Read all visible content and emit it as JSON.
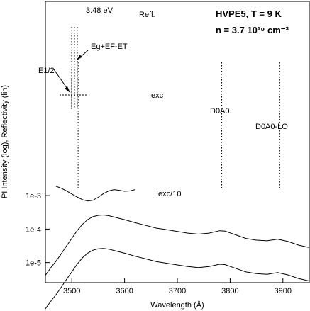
{
  "chart_data": {
    "type": "line",
    "xlabel": "Wavelength (Å)",
    "ylabel": "PI Intensity (log), Reflectivity (lin)",
    "x_ticks": [
      3500,
      3600,
      3700,
      3800,
      3900
    ],
    "y_ticks": [
      "1e-5",
      "1e-4",
      "1e-3"
    ],
    "xlim": [
      3450,
      3950
    ],
    "ylim_log10": [
      -5.6,
      2.8
    ],
    "panel_text": [
      "HVPE5, T = 9 K",
      "n = 3.7 10¹⁹ cm⁻³"
    ],
    "labels": {
      "refl": "Refl.",
      "refl_energy": "3.48 eV",
      "eg": "Eg+EF-ET",
      "e12": "E1/2",
      "iexc": "Iexc",
      "iexc_div": "Iexc/10",
      "d0a0": "D0A0",
      "d0a0_lo": "D0A0-LO"
    },
    "series": [
      {
        "name": "Refl.",
        "points": [
          [
            3470,
            -2.72
          ],
          [
            3480,
            -2.78
          ],
          [
            3490,
            -2.86
          ],
          [
            3500,
            -2.95
          ],
          [
            3510,
            -3.04
          ],
          [
            3520,
            -3.12
          ],
          [
            3530,
            -3.16
          ],
          [
            3540,
            -3.14
          ],
          [
            3550,
            -3.05
          ],
          [
            3560,
            -2.94
          ],
          [
            3570,
            -2.86
          ],
          [
            3580,
            -2.82
          ],
          [
            3590,
            -2.84
          ],
          [
            3600,
            -2.87
          ],
          [
            3610,
            -2.86
          ],
          [
            3620,
            -2.82
          ]
        ]
      },
      {
        "name": "Iexc",
        "points": [
          [
            3450,
            -5.38
          ],
          [
            3460,
            -5.16
          ],
          [
            3470,
            -4.96
          ],
          [
            3480,
            -4.74
          ],
          [
            3490,
            -4.5
          ],
          [
            3500,
            -4.28
          ],
          [
            3510,
            -4.05
          ],
          [
            3520,
            -3.86
          ],
          [
            3530,
            -3.72
          ],
          [
            3540,
            -3.63
          ],
          [
            3550,
            -3.59
          ],
          [
            3560,
            -3.58
          ],
          [
            3570,
            -3.6
          ],
          [
            3580,
            -3.64
          ],
          [
            3600,
            -3.72
          ],
          [
            3620,
            -3.81
          ],
          [
            3640,
            -3.89
          ],
          [
            3660,
            -3.97
          ],
          [
            3680,
            -4.02
          ],
          [
            3700,
            -4.07
          ],
          [
            3720,
            -4.12
          ],
          [
            3740,
            -4.15
          ],
          [
            3760,
            -4.12
          ],
          [
            3780,
            -4.05
          ],
          [
            3790,
            -4.06
          ],
          [
            3810,
            -4.17
          ],
          [
            3830,
            -4.28
          ],
          [
            3850,
            -4.33
          ],
          [
            3870,
            -4.35
          ],
          [
            3890,
            -4.3
          ],
          [
            3910,
            -4.37
          ],
          [
            3930,
            -4.48
          ],
          [
            3950,
            -4.55
          ]
        ]
      },
      {
        "name": "Iexc/10",
        "points": [
          [
            3450,
            -6.38
          ],
          [
            3460,
            -6.16
          ],
          [
            3470,
            -5.96
          ],
          [
            3480,
            -5.74
          ],
          [
            3490,
            -5.5
          ],
          [
            3500,
            -5.28
          ],
          [
            3510,
            -5.05
          ],
          [
            3520,
            -4.86
          ],
          [
            3530,
            -4.72
          ],
          [
            3540,
            -4.63
          ],
          [
            3550,
            -4.59
          ],
          [
            3560,
            -4.58
          ],
          [
            3570,
            -4.6
          ],
          [
            3580,
            -4.64
          ],
          [
            3600,
            -4.72
          ],
          [
            3620,
            -4.81
          ],
          [
            3640,
            -4.89
          ],
          [
            3660,
            -4.97
          ],
          [
            3680,
            -5.02
          ],
          [
            3700,
            -5.07
          ],
          [
            3720,
            -5.12
          ],
          [
            3740,
            -5.15
          ],
          [
            3760,
            -5.12
          ],
          [
            3780,
            -5.05
          ],
          [
            3790,
            -5.06
          ],
          [
            3810,
            -5.17
          ],
          [
            3830,
            -5.28
          ],
          [
            3850,
            -5.33
          ],
          [
            3870,
            -5.35
          ],
          [
            3890,
            -5.3
          ],
          [
            3910,
            -5.37
          ],
          [
            3930,
            -5.48
          ],
          [
            3950,
            -5.55
          ]
        ]
      }
    ],
    "markers": [
      {
        "name": "E1/2",
        "x": 3512
      },
      {
        "name": "D0A0",
        "x": 3784
      },
      {
        "name": "D0A0-LO",
        "x": 3894
      }
    ]
  }
}
